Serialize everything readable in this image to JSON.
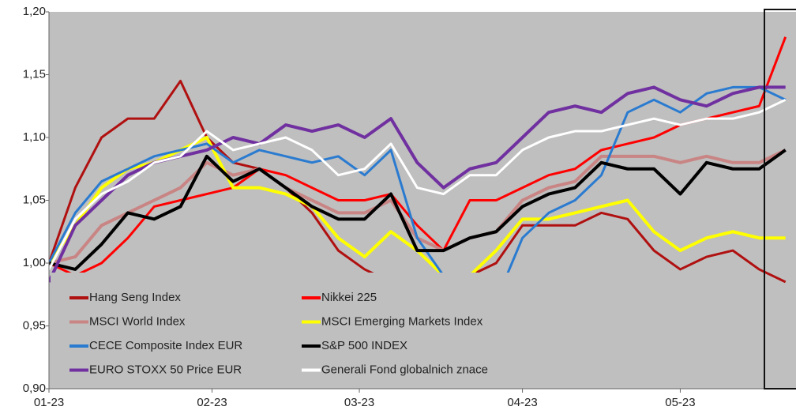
{
  "chart_data": {
    "type": "line",
    "x": [
      0,
      5,
      10,
      15,
      20,
      25,
      30,
      35,
      40,
      45,
      50,
      55,
      60,
      65,
      70,
      75,
      80,
      85,
      90,
      95,
      100,
      105,
      110,
      115,
      120,
      125,
      130,
      135,
      140
    ],
    "xlim": [
      0,
      142
    ],
    "xticks": [
      {
        "value": 0,
        "label": "01-23"
      },
      {
        "value": 31,
        "label": "02-23"
      },
      {
        "value": 59,
        "label": "03-23"
      },
      {
        "value": 90,
        "label": "04-23"
      },
      {
        "value": 120,
        "label": "05-23"
      }
    ],
    "ylim": [
      0.9,
      1.2
    ],
    "yticks": [
      {
        "value": 0.9,
        "label": "0,90"
      },
      {
        "value": 0.95,
        "label": "0,95"
      },
      {
        "value": 1.0,
        "label": "1,00"
      },
      {
        "value": 1.05,
        "label": "1,05"
      },
      {
        "value": 1.1,
        "label": "1,10"
      },
      {
        "value": 1.15,
        "label": "1,15"
      },
      {
        "value": 1.2,
        "label": "1,20"
      }
    ],
    "grid": false,
    "series": [
      {
        "name": "Hang Seng Index",
        "color": "#b01010",
        "values": [
          1.0,
          1.06,
          1.1,
          1.115,
          1.115,
          1.145,
          1.1,
          1.08,
          1.075,
          1.06,
          1.04,
          1.01,
          0.995,
          0.985,
          0.98,
          0.985,
          0.99,
          1.0,
          1.03,
          1.03,
          1.03,
          1.04,
          1.035,
          1.01,
          0.995,
          1.005,
          1.01,
          0.995,
          0.985
        ]
      },
      {
        "name": "Nikkei 225",
        "color": "#ff0000",
        "values": [
          1.0,
          0.99,
          1.0,
          1.02,
          1.045,
          1.05,
          1.055,
          1.06,
          1.075,
          1.07,
          1.06,
          1.05,
          1.05,
          1.055,
          1.03,
          1.01,
          1.05,
          1.05,
          1.06,
          1.07,
          1.075,
          1.09,
          1.095,
          1.1,
          1.11,
          1.115,
          1.12,
          1.125,
          1.18
        ]
      },
      {
        "name": "MSCI World Index",
        "color": "#c98484",
        "values": [
          1.0,
          1.005,
          1.03,
          1.04,
          1.05,
          1.06,
          1.08,
          1.07,
          1.075,
          1.06,
          1.05,
          1.04,
          1.04,
          1.05,
          1.02,
          1.01,
          1.02,
          1.025,
          1.05,
          1.06,
          1.065,
          1.085,
          1.085,
          1.085,
          1.08,
          1.085,
          1.08,
          1.08,
          1.09
        ]
      },
      {
        "name": "MSCI Emerging Markets Index",
        "color": "#ffff00",
        "values": [
          1.0,
          1.03,
          1.06,
          1.075,
          1.08,
          1.09,
          1.1,
          1.06,
          1.06,
          1.055,
          1.045,
          1.02,
          1.005,
          1.025,
          1.01,
          0.99,
          0.99,
          1.01,
          1.035,
          1.035,
          1.04,
          1.045,
          1.05,
          1.025,
          1.01,
          1.02,
          1.025,
          1.02,
          1.02
        ]
      },
      {
        "name": "CECE Composite Index EUR",
        "color": "#2a7bd0",
        "values": [
          1.0,
          1.04,
          1.065,
          1.075,
          1.085,
          1.09,
          1.095,
          1.08,
          1.09,
          1.085,
          1.08,
          1.085,
          1.07,
          1.09,
          1.02,
          0.99,
          0.99,
          0.97,
          1.02,
          1.04,
          1.05,
          1.07,
          1.12,
          1.13,
          1.12,
          1.135,
          1.14,
          1.14,
          1.13
        ]
      },
      {
        "name": "S&P 500 INDEX",
        "color": "#000000",
        "values": [
          1.0,
          0.995,
          1.015,
          1.04,
          1.035,
          1.045,
          1.085,
          1.065,
          1.075,
          1.06,
          1.045,
          1.035,
          1.035,
          1.055,
          1.01,
          1.01,
          1.02,
          1.025,
          1.045,
          1.055,
          1.06,
          1.08,
          1.075,
          1.075,
          1.055,
          1.08,
          1.075,
          1.075,
          1.09
        ]
      },
      {
        "name": "EURO STOXX 50 Price EUR",
        "color": "#7030a0",
        "values": [
          0.985,
          1.03,
          1.05,
          1.07,
          1.08,
          1.085,
          1.09,
          1.1,
          1.095,
          1.11,
          1.105,
          1.11,
          1.1,
          1.115,
          1.08,
          1.06,
          1.075,
          1.08,
          1.1,
          1.12,
          1.125,
          1.12,
          1.135,
          1.14,
          1.13,
          1.125,
          1.135,
          1.14,
          1.14
        ]
      },
      {
        "name": "Generali Fond globalnich znace",
        "color": "#ffffff",
        "values": [
          0.995,
          1.035,
          1.055,
          1.065,
          1.08,
          1.085,
          1.105,
          1.09,
          1.095,
          1.1,
          1.09,
          1.07,
          1.075,
          1.095,
          1.06,
          1.055,
          1.07,
          1.07,
          1.09,
          1.1,
          1.105,
          1.105,
          1.11,
          1.115,
          1.11,
          1.115,
          1.115,
          1.12,
          1.13
        ]
      }
    ]
  }
}
